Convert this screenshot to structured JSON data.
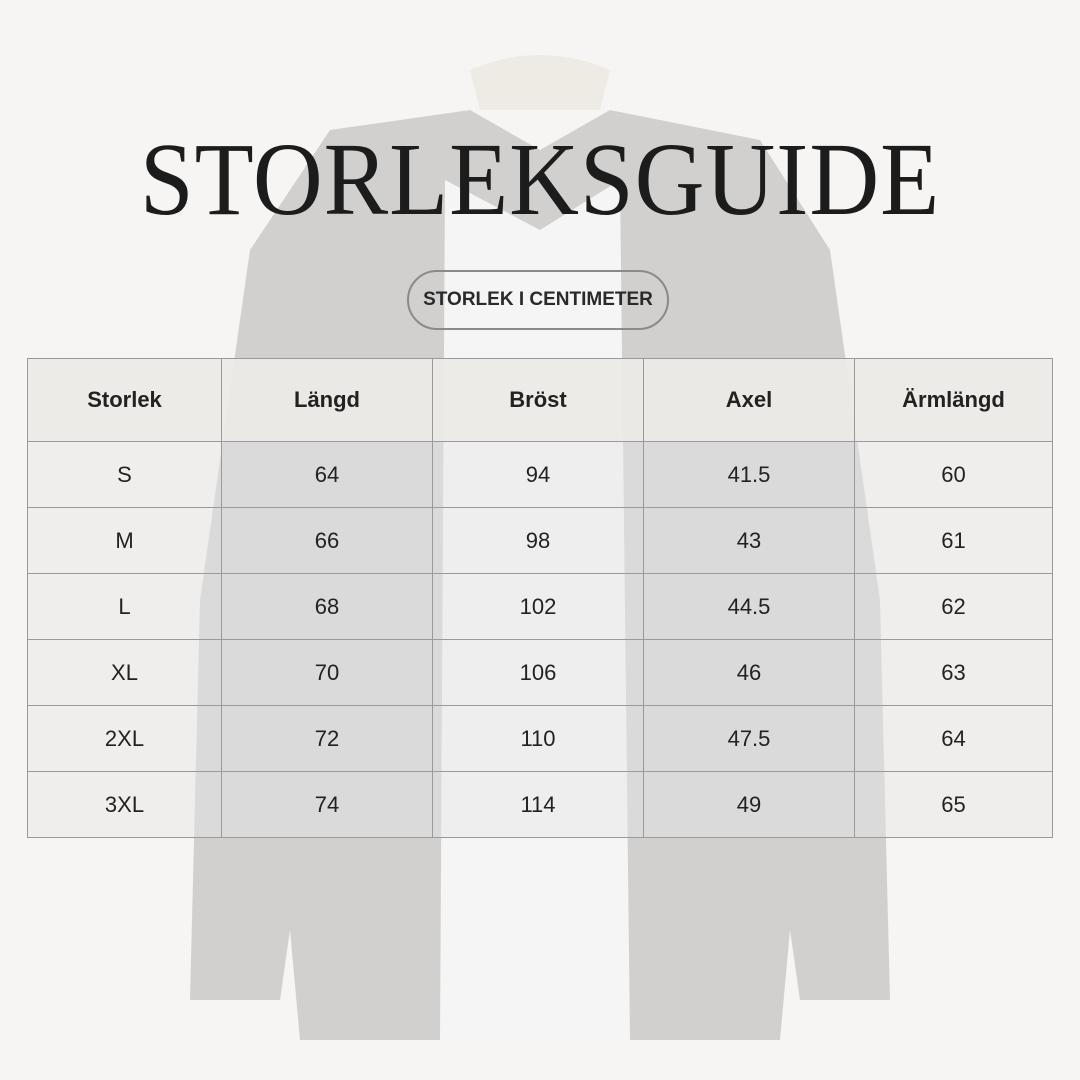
{
  "title": "STORLEKSGUIDE",
  "subtitle_badge": "STORLEK I CENTIMETER",
  "table": {
    "headers": [
      "Storlek",
      "Längd",
      "Bröst",
      "Axel",
      "Ärmlängd"
    ],
    "rows": [
      [
        "S",
        "64",
        "94",
        "41.5",
        "60"
      ],
      [
        "M",
        "66",
        "98",
        "43",
        "61"
      ],
      [
        "L",
        "68",
        "102",
        "44.5",
        "62"
      ],
      [
        "XL",
        "70",
        "106",
        "46",
        "63"
      ],
      [
        "2XL",
        "72",
        "110",
        "47.5",
        "64"
      ],
      [
        "3XL",
        "74",
        "114",
        "49",
        "65"
      ]
    ]
  },
  "colors": {
    "background": "#f6f5f3",
    "header_fill": "#eceae6",
    "text": "#1c1c1c",
    "border": "#9a9a9a"
  }
}
